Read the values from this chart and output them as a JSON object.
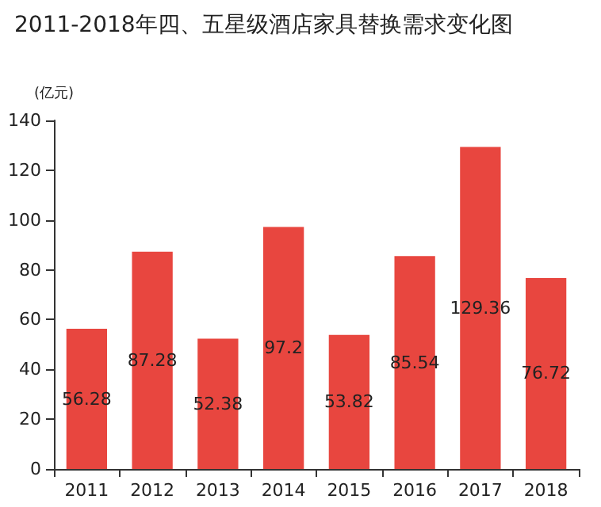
{
  "chart_data": {
    "type": "bar",
    "title": "2011-2018年四、五星级酒店家具替换需求变化图",
    "ylabel": "(亿元)",
    "categories": [
      "2011",
      "2012",
      "2013",
      "2014",
      "2015",
      "2016",
      "2017",
      "2018"
    ],
    "values": [
      56.28,
      87.28,
      52.38,
      97.2,
      53.82,
      85.54,
      129.36,
      76.72
    ],
    "color": "#e8463f",
    "ylim": [
      0,
      140
    ],
    "yticks": [
      0,
      20,
      40,
      60,
      80,
      100,
      120,
      140
    ],
    "grid": false,
    "data_labels": true
  }
}
